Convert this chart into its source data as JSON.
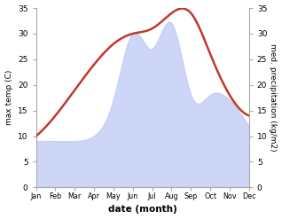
{
  "months": [
    "Jan",
    "Feb",
    "Mar",
    "Apr",
    "May",
    "Jun",
    "Jul",
    "Aug",
    "Sep",
    "Oct",
    "Nov",
    "Dec"
  ],
  "temperature": [
    10,
    14,
    19,
    24,
    28,
    30,
    31,
    34,
    34,
    26,
    18,
    14
  ],
  "precipitation": [
    9,
    9,
    9,
    10,
    17,
    30,
    27,
    32,
    18,
    18,
    17,
    12
  ],
  "temp_color": "#c0392b",
  "precip_color": "#c5cff5",
  "ylim_left": [
    0,
    35
  ],
  "ylim_right": [
    0,
    35
  ],
  "xlabel": "date (month)",
  "ylabel_left": "max temp (C)",
  "ylabel_right": "med. precipitation (kg/m2)",
  "background_color": "#ffffff",
  "temp_linewidth": 1.8
}
